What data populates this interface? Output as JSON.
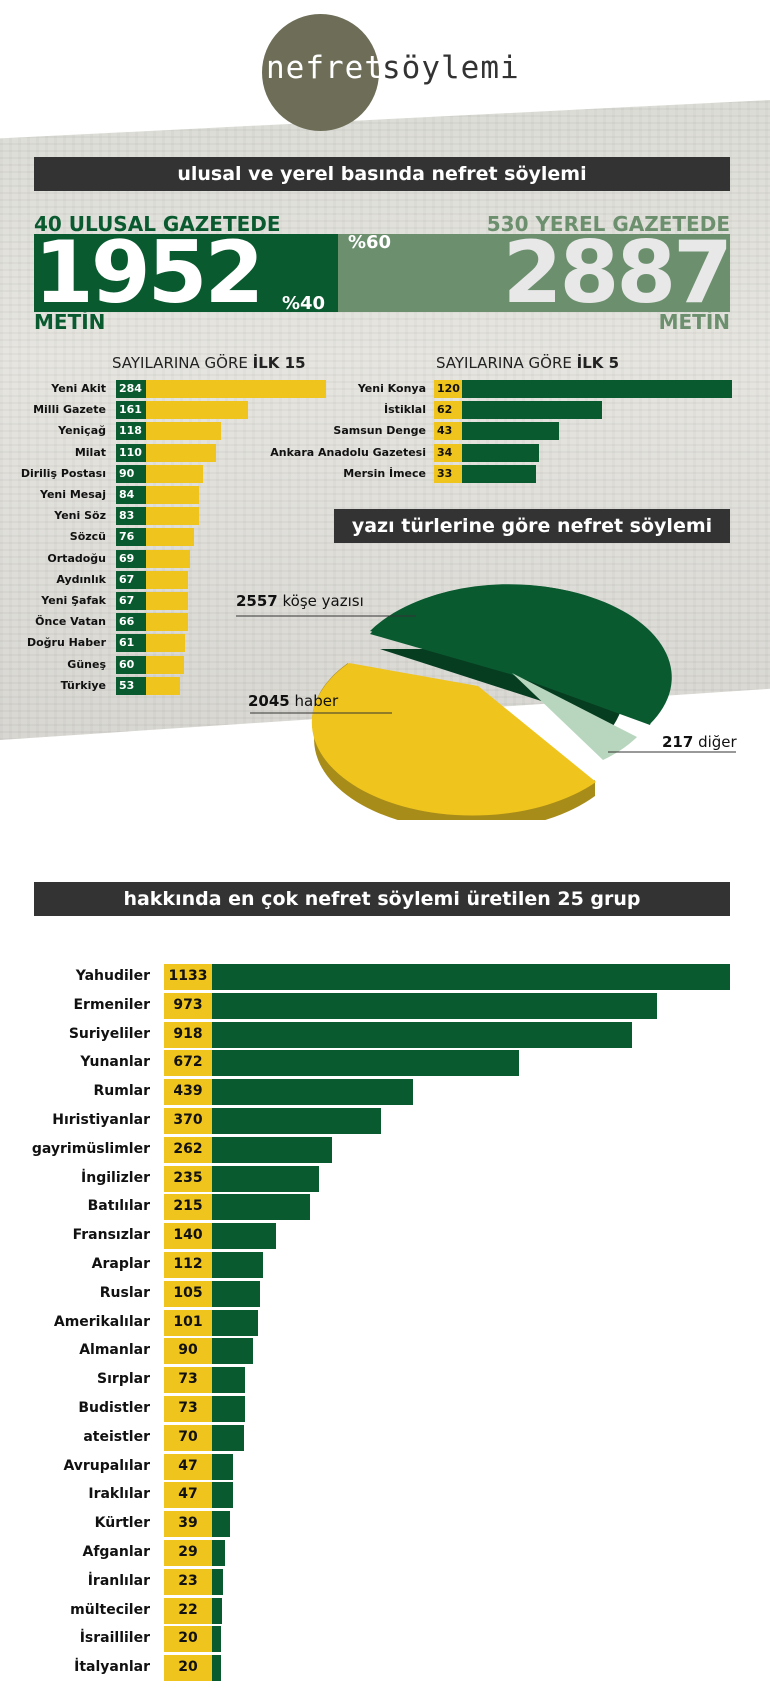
{
  "logo": {
    "part1": "nefret",
    "part2": "söylemi"
  },
  "section1": {
    "title": "ulusal ve yerel basında nefret söylemi",
    "national": {
      "label": "40 ULUSAL GAZETEDE",
      "value": "1952",
      "unit": "METİN",
      "percent": "%40"
    },
    "local": {
      "label": "530 YEREL GAZETEDE",
      "value": "2887",
      "unit": "METİN",
      "percent": "%60"
    },
    "top15_title": {
      "prefix": "SAYILARINA GÖRE ",
      "bold": "İLK 15"
    },
    "top5_title": {
      "prefix": "SAYILARINA GÖRE ",
      "bold": "İLK 5"
    }
  },
  "section2": {
    "title": "yazı türlerine göre nefret söylemi"
  },
  "section3": {
    "title": "hakkında en çok nefret söylemi üretilen 25 grup"
  },
  "colors": {
    "dark_green": "#0a5a30",
    "light_green": "#6c8f6e",
    "yellow": "#efc41c",
    "pale_green": "#b8d6be",
    "dark_bar": "#333333"
  },
  "chart_data": [
    {
      "type": "bar",
      "orientation": "horizontal",
      "categories": [
        "Yeni Akit",
        "Milli Gazete",
        "Yeniçağ",
        "Milat",
        "Diriliş Postası",
        "Yeni Mesaj",
        "Yeni Söz",
        "Sözcü",
        "Ortadoğu",
        "Aydınlık",
        "Yeni Şafak",
        "Önce Vatan",
        "Doğru Haber",
        "Güneş",
        "Türkiye"
      ],
      "values": [
        284,
        161,
        118,
        110,
        90,
        84,
        83,
        76,
        69,
        67,
        67,
        66,
        61,
        60,
        53
      ]
    },
    {
      "type": "bar",
      "orientation": "horizontal",
      "categories": [
        "Yeni Konya",
        "İstiklal",
        "Samsun Denge",
        "Ankara Anadolu Gazetesi",
        "Mersin İmece"
      ],
      "values": [
        120,
        62,
        43,
        34,
        33
      ]
    },
    {
      "type": "pie",
      "slices": [
        {
          "value": "2557",
          "label": "köşe yazısı"
        },
        {
          "value": "2045",
          "label": "haber"
        },
        {
          "value": "217",
          "label": "diğer"
        }
      ]
    },
    {
      "type": "bar",
      "orientation": "horizontal",
      "categories": [
        "Yahudiler",
        "Ermeniler",
        "Suriyeliler",
        "Yunanlar",
        "Rumlar",
        "Hıristiyanlar",
        "gayrimüslimler",
        "İngilizler",
        "Batılılar",
        "Fransızlar",
        "Araplar",
        "Ruslar",
        "Amerikalılar",
        "Almanlar",
        "Sırplar",
        "Budistler",
        "ateistler",
        "Avrupalılar",
        "Iraklılar",
        "Kürtler",
        "Afganlar",
        "İranlılar",
        "mülteciler",
        "İsrailliler",
        "İtalyanlar"
      ],
      "values": [
        1133,
        973,
        918,
        672,
        439,
        370,
        262,
        235,
        215,
        140,
        112,
        105,
        101,
        90,
        73,
        73,
        70,
        47,
        47,
        39,
        29,
        23,
        22,
        20,
        20
      ]
    }
  ]
}
